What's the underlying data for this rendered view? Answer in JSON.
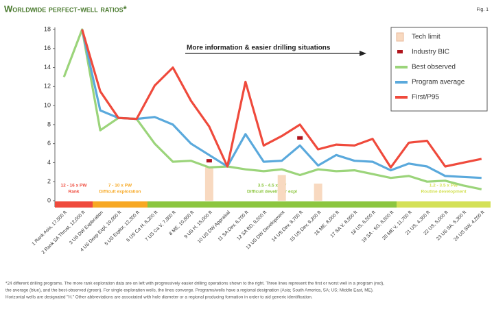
{
  "chart_data": {
    "type": "line",
    "title": "Worldwide perfect-well ratios*",
    "figure_label": "Fig. 1",
    "annotation": "More information & easier drilling situations",
    "categories": [
      "1 Rank Asia, 17,500 ft",
      "2 Rank SA Thrust, 12,000 ft",
      "3 US DW Exploration",
      "4 US Deep Expl, 19,000 ft",
      "5 US Explor, 12,300 ft",
      "6 US Ca H, 8,200 ft",
      "7 US Ca V, 7,800 ft",
      "8 ME, 10,800 ft",
      "9 US H, 15,000 ft",
      "10 US DW Appraisal",
      "11 SA Dev, 6,700 ft",
      "12 SA BD, 9,500 ft",
      "13 US DW Development",
      "14 US Dev, 8,700 ft",
      "15 US Dev, 9,200 ft",
      "16 ME, 8,000 ft",
      "17 SA V, 8,500 ft",
      "18 US, 6,500 ft",
      "19 SA - SG, 8,500 ft",
      "20 ME V, 11,700 ft",
      "21 US, 4,300 ft",
      "22 US, 5,000 ft",
      "23 US SA, 5,300 ft",
      "24 US SW, 4,200 ft"
    ],
    "series": [
      {
        "name": "Tech limit",
        "kind": "bar",
        "color": "#f8d9c0",
        "values": [
          null,
          null,
          null,
          null,
          null,
          null,
          null,
          null,
          3.6,
          null,
          null,
          null,
          2.7,
          null,
          1.8,
          null,
          null,
          null,
          null,
          null,
          null,
          null,
          null,
          null
        ]
      },
      {
        "name": "Industry BIC",
        "kind": "marker",
        "color": "#b0141c",
        "values": [
          null,
          null,
          null,
          null,
          null,
          null,
          null,
          null,
          4.2,
          null,
          null,
          null,
          null,
          6.6,
          null,
          null,
          null,
          null,
          null,
          null,
          null,
          null,
          null,
          null
        ]
      },
      {
        "name": "Best observed",
        "kind": "line",
        "color": "#9bd47a",
        "values": [
          13,
          18,
          7.4,
          8.7,
          8.6,
          6.0,
          4.1,
          4.2,
          3.5,
          3.6,
          3.3,
          3.1,
          3.3,
          2.7,
          3.3,
          3.1,
          3.2,
          2.8,
          2.4,
          2.6,
          2.0,
          2.1,
          1.6,
          1.2
        ]
      },
      {
        "name": "Program average",
        "kind": "line",
        "color": "#5aa9dc",
        "values": [
          null,
          18,
          9.5,
          8.7,
          8.6,
          8.8,
          8.0,
          6.0,
          4.8,
          3.6,
          7.0,
          4.1,
          4.2,
          5.8,
          3.7,
          4.8,
          4.2,
          4.1,
          3.2,
          3.9,
          3.6,
          2.6,
          2.5,
          2.4
        ]
      },
      {
        "name": "First/P95",
        "kind": "line",
        "color": "#ef4a3c",
        "values": [
          null,
          18,
          11.5,
          8.7,
          8.6,
          12.1,
          14,
          10.5,
          7.8,
          3.6,
          12.5,
          5.8,
          6.8,
          8.0,
          5.4,
          5.9,
          5.8,
          6.5,
          3.5,
          6.1,
          6.3,
          3.6,
          4.0,
          4.4
        ]
      }
    ],
    "regions": [
      {
        "ratio": "12 - 16 x PW",
        "label": "Rank",
        "color": "#ef4a3c"
      },
      {
        "ratio": "7 - 10 x PW",
        "label": "Difficult exploration",
        "color": "#f7a823"
      },
      {
        "ratio": "3.5 - 4.5 x PW",
        "label": "Difficult devel/near expl",
        "color": "#8cc63f"
      },
      {
        "ratio": "1.2 - 3.5 x PW",
        "label": "Routine development",
        "color": "#d4e157"
      }
    ],
    "ylim": [
      0,
      18
    ],
    "yticks": [
      0,
      2,
      4,
      6,
      8,
      10,
      12,
      14,
      16,
      18
    ],
    "grid": false,
    "legend": "top-right",
    "footnote": [
      "*24 different drilling programs. The more rank exploration data are on left with progressively easier drilling operations shown to the right. Three lines represent the first or worst well in a program (red),",
      "the average (blue), and the best-observed (green). For single exploration wells, the lines converge. Programs/wells have a regional designation (Asia; South America, SA; US; Middle East, ME).",
      "Horizontal wells are designated \"H.\" Other abbreviations are associated with hole diameter or a regional producing formation in order to aid generic identification."
    ]
  }
}
